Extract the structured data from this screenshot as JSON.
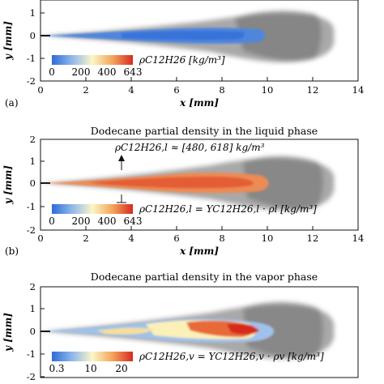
{
  "figure": {
    "panels": [
      {
        "id": "a",
        "label": "(a)",
        "title": "",
        "xlabel": "x [mm]",
        "ylabel": "y [mm]",
        "y_ticks": [
          "1",
          "0",
          "-1",
          "-2"
        ],
        "x_ticks": [
          "0",
          "2",
          "4",
          "6",
          "8",
          "10",
          "12",
          "14"
        ],
        "colorbar_ticks": [
          "0",
          "200",
          "400",
          "643"
        ],
        "colorbar_label": "ρC12H26 [kg/m³]",
        "colormap": "blue-white-red"
      },
      {
        "id": "b",
        "label": "(b)",
        "title": "Dodecane partial density in the liquid phase",
        "xlabel": "x [mm]",
        "ylabel": "y [mm]",
        "y_ticks": [
          "2",
          "1",
          "0",
          "-1",
          "-2"
        ],
        "x_ticks": [
          "0",
          "2",
          "4",
          "6",
          "8",
          "10",
          "12",
          "14"
        ],
        "colorbar_ticks": [
          "0",
          "200",
          "400",
          "643"
        ],
        "colorbar_label": "ρC12H26,l = YC12H26,l · ρl [kg/m³]",
        "annotation": "ρC12H26,l ≈ [480, 618] kg/m³",
        "colormap": "blue-white-red"
      },
      {
        "id": "c",
        "label": "",
        "title": "Dodecane partial density in the vapor phase",
        "xlabel": "",
        "ylabel": "y [mm]",
        "y_ticks": [
          "2",
          "1",
          "0",
          "-1",
          "-2"
        ],
        "x_ticks": [],
        "colorbar_ticks": [
          "0.3",
          "10",
          "20"
        ],
        "colorbar_label": "ρC12H26,v = YC12H26,v · ρv [kg/m³]",
        "colormap": "blue-white-red"
      }
    ],
    "colors": {
      "spray_gray": "#8c8c8c",
      "cmap_low": "#2f6bd8",
      "cmap_mid": "#fbf6c6",
      "cmap_high": "#d62b1f"
    }
  }
}
